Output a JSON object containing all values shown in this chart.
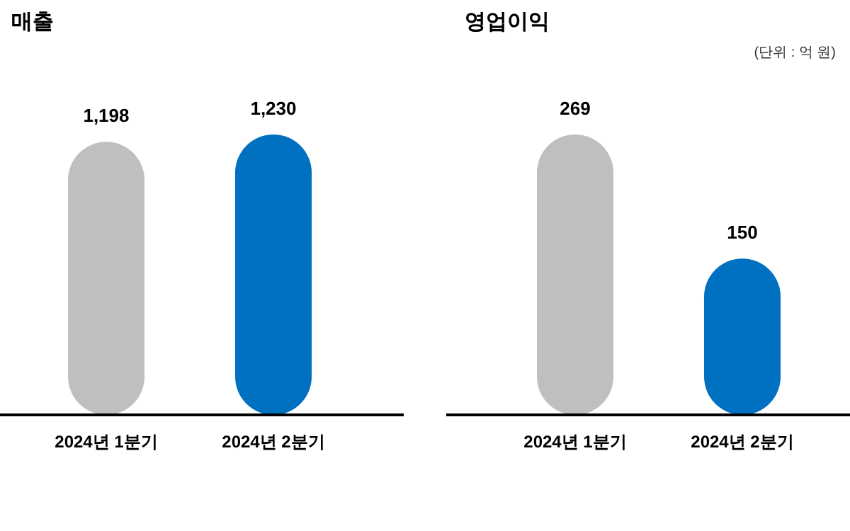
{
  "chart_data": [
    {
      "type": "bar",
      "title": "매출",
      "categories": [
        "2024년 1분기",
        "2024년 2분기"
      ],
      "colors": [
        "#bfbfbf",
        "#0070c0"
      ],
      "values": [
        1198,
        1230
      ],
      "value_labels": [
        "1,198",
        "1,230"
      ]
    },
    {
      "type": "bar",
      "title": "영업이익",
      "annotations": [
        "(단위 : 억 원)"
      ],
      "categories": [
        "2024년 1분기",
        "2024년 2분기"
      ],
      "colors": [
        "#bfbfbf",
        "#0070c0"
      ],
      "values": [
        269,
        150
      ],
      "data_labels": true
    }
  ]
}
